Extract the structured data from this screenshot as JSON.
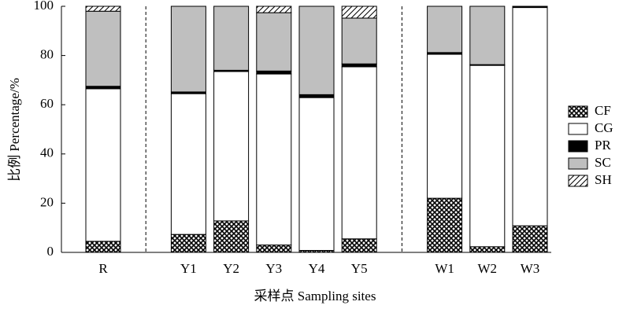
{
  "chart_data": {
    "type": "stacked-bar",
    "xlabel": "采样点 Sampling sites",
    "ylabel": "比例 Percentage/%",
    "categories": [
      "R",
      null,
      "Y1",
      "Y2",
      "Y3",
      "Y4",
      "Y5",
      null,
      "W1",
      "W2",
      "W3"
    ],
    "series": [
      {
        "name": "CF",
        "color": "#000000",
        "pattern": "crosshatch",
        "values": [
          4.5,
          null,
          7.3,
          12.8,
          3,
          0.8,
          5.5,
          null,
          22,
          2.3,
          10.8
        ]
      },
      {
        "name": "CG",
        "color": "#ffffff",
        "pattern": "none",
        "values": [
          62,
          null,
          57.2,
          60.7,
          69.5,
          62.1,
          69.9,
          null,
          58.5,
          73.7,
          88.7
        ]
      },
      {
        "name": "PR",
        "color": "#000000",
        "pattern": "none",
        "values": [
          1,
          null,
          0.7,
          0.5,
          1.2,
          1.2,
          1.2,
          null,
          0.7,
          0.3,
          0.5
        ]
      },
      {
        "name": "SC",
        "color": "#bfbfbf",
        "pattern": "none",
        "values": [
          30.5,
          null,
          34.8,
          26,
          23.7,
          35.9,
          18.6,
          null,
          18.8,
          23.7,
          0
        ]
      },
      {
        "name": "SH",
        "color": "#000000",
        "pattern": "diagonal",
        "values": [
          2,
          null,
          0,
          0,
          2.6,
          0,
          4.8,
          null,
          0,
          0,
          0
        ]
      }
    ],
    "ylim": [
      0,
      100
    ],
    "yticks": [
      0,
      20,
      40,
      60,
      80,
      100
    ],
    "legend": "right"
  }
}
